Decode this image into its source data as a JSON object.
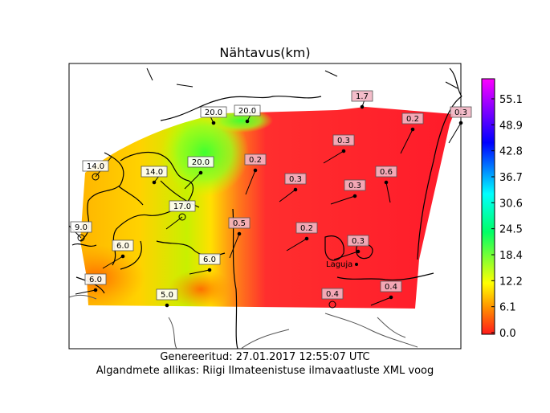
{
  "title": "Nähtavus(km)",
  "footer": {
    "generated": "Genereeritud: 27.01.2017 12:55:07 UTC",
    "source": "Algandmete allikas: Riigi Ilmateenistuse ilmavaatluste XML voog"
  },
  "colorbar": {
    "ticks": [
      "55.1",
      "48.9",
      "42.8",
      "36.7",
      "30.6",
      "24.5",
      "18.4",
      "12.2",
      "6.1",
      "0.0"
    ],
    "min": 0.0,
    "max": 59.0,
    "colors": [
      "#ff1a1a",
      "#ff8c00",
      "#ffff00",
      "#00ff66",
      "#00ffff",
      "#0000ff",
      "#ff00ff"
    ]
  },
  "stations": [
    {
      "label": "14.0"
    },
    {
      "label": "20.0"
    },
    {
      "label": "20.0"
    },
    {
      "label": "1.7"
    },
    {
      "label": "0.2"
    },
    {
      "label": "0.3"
    },
    {
      "label": "14.0"
    },
    {
      "label": "20.0"
    },
    {
      "label": "0.2"
    },
    {
      "label": "0.3"
    },
    {
      "label": "0.3"
    },
    {
      "label": "0.6"
    },
    {
      "label": "0.3"
    },
    {
      "label": "17.0"
    },
    {
      "label": "9.0"
    },
    {
      "label": "0.5"
    },
    {
      "label": "0.2"
    },
    {
      "label": "0.3"
    },
    {
      "label": "6.0"
    },
    {
      "label": "6.0"
    },
    {
      "label": "6.0"
    },
    {
      "label": "0.4"
    },
    {
      "label": "5.0"
    },
    {
      "label": "0.4"
    }
  ],
  "place_label": "Laguja"
}
